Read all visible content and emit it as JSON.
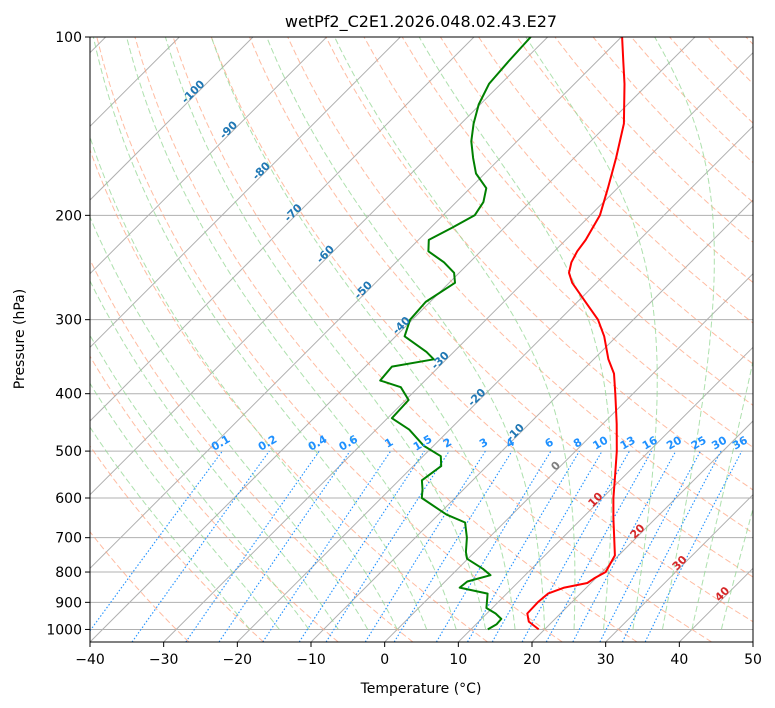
{
  "chart_data": {
    "type": "line",
    "subtype": "skew-t log-p diagram",
    "title": "wetPf2_C2E1.2026.048.02.43.E27",
    "xlabel": "Temperature (°C)",
    "ylabel": "Pressure (hPa)",
    "xlim": [
      -40,
      50
    ],
    "ylim": [
      1050,
      100
    ],
    "x_ticks": [
      -40,
      -30,
      -20,
      -10,
      0,
      10,
      20,
      30,
      40,
      50
    ],
    "x_tick_labels": [
      "−40",
      "−30",
      "−20",
      "−10",
      "0",
      "10",
      "20",
      "30",
      "40",
      "50"
    ],
    "y_ticks": [
      1000,
      900,
      800,
      700,
      600,
      500,
      400,
      300,
      200,
      100
    ],
    "y_tick_labels": [
      "1000",
      "900",
      "800",
      "700",
      "600",
      "500",
      "400",
      "300",
      "200",
      "100"
    ],
    "grid": true,
    "isotherm_labels": [
      {
        "temp": -100,
        "label": "-100",
        "color": "#1f77b4"
      },
      {
        "temp": -90,
        "label": "-90",
        "color": "#1f77b4"
      },
      {
        "temp": -80,
        "label": "-80",
        "color": "#1f77b4"
      },
      {
        "temp": -70,
        "label": "-70",
        "color": "#1f77b4"
      },
      {
        "temp": -60,
        "label": "-60",
        "color": "#1f77b4"
      },
      {
        "temp": -50,
        "label": "-50",
        "color": "#1f77b4"
      },
      {
        "temp": -40,
        "label": "-40",
        "color": "#1f77b4"
      },
      {
        "temp": -30,
        "label": "-30",
        "color": "#1f77b4"
      },
      {
        "temp": -20,
        "label": "-20",
        "color": "#1f77b4"
      },
      {
        "temp": -10,
        "label": "-10",
        "color": "#1f77b4"
      },
      {
        "temp": 0,
        "label": "0",
        "color": "#808080"
      },
      {
        "temp": 10,
        "label": "10",
        "color": "#d62728"
      },
      {
        "temp": 20,
        "label": "20",
        "color": "#d62728"
      },
      {
        "temp": 30,
        "label": "30",
        "color": "#d62728"
      },
      {
        "temp": 40,
        "label": "40",
        "color": "#d62728"
      }
    ],
    "mixing_ratio_labels": [
      "0.1",
      "0.2",
      "0.4",
      "0.6",
      "1",
      "1.5",
      "2",
      "3",
      "4",
      "6",
      "8",
      "10",
      "13",
      "16",
      "20",
      "25",
      "30",
      "36"
    ],
    "mixing_ratio_values": [
      0.1,
      0.2,
      0.4,
      0.6,
      1,
      1.5,
      2,
      3,
      4,
      6,
      8,
      10,
      13,
      16,
      20,
      25,
      30,
      36
    ],
    "series": [
      {
        "name": "Temperature",
        "color": "#ff0000",
        "points": [
          {
            "p": 1000,
            "t": 19.2
          },
          {
            "p": 970,
            "t": 16.8
          },
          {
            "p": 940,
            "t": 15.5
          },
          {
            "p": 900,
            "t": 15.4
          },
          {
            "p": 870,
            "t": 15.6
          },
          {
            "p": 850,
            "t": 17.0
          },
          {
            "p": 835,
            "t": 19.5
          },
          {
            "p": 820,
            "t": 19.8
          },
          {
            "p": 800,
            "t": 20.5
          },
          {
            "p": 750,
            "t": 19.5
          },
          {
            "p": 700,
            "t": 17.0
          },
          {
            "p": 650,
            "t": 14.3
          },
          {
            "p": 600,
            "t": 11.5
          },
          {
            "p": 550,
            "t": 8.7
          },
          {
            "p": 500,
            "t": 5.6
          },
          {
            "p": 450,
            "t": 1.9
          },
          {
            "p": 400,
            "t": -2.4
          },
          {
            "p": 370,
            "t": -5.3
          },
          {
            "p": 350,
            "t": -8.0
          },
          {
            "p": 320,
            "t": -11.7
          },
          {
            "p": 300,
            "t": -14.8
          },
          {
            "p": 280,
            "t": -18.9
          },
          {
            "p": 260,
            "t": -23.3
          },
          {
            "p": 250,
            "t": -25.1
          },
          {
            "p": 240,
            "t": -26.2
          },
          {
            "p": 230,
            "t": -26.9
          },
          {
            "p": 220,
            "t": -27.3
          },
          {
            "p": 200,
            "t": -28.7
          },
          {
            "p": 180,
            "t": -31.3
          },
          {
            "p": 160,
            "t": -34.3
          },
          {
            "p": 140,
            "t": -37.9
          },
          {
            "p": 120,
            "t": -43.2
          },
          {
            "p": 110,
            "t": -46.4
          },
          {
            "p": 100,
            "t": -49.9
          }
        ]
      },
      {
        "name": "Dewpoint",
        "color": "#008000",
        "points": [
          {
            "p": 1000,
            "td": 12.3
          },
          {
            "p": 980,
            "td": 12.8
          },
          {
            "p": 960,
            "td": 12.7
          },
          {
            "p": 940,
            "td": 11.2
          },
          {
            "p": 920,
            "td": 9.2
          },
          {
            "p": 900,
            "td": 8.5
          },
          {
            "p": 870,
            "td": 7.4
          },
          {
            "p": 850,
            "td": 2.8
          },
          {
            "p": 830,
            "td": 3.0
          },
          {
            "p": 810,
            "td": 5.3
          },
          {
            "p": 790,
            "td": 3.4
          },
          {
            "p": 760,
            "td": -0.1
          },
          {
            "p": 740,
            "td": -1.2
          },
          {
            "p": 700,
            "td": -3.0
          },
          {
            "p": 660,
            "td": -5.3
          },
          {
            "p": 640,
            "td": -8.9
          },
          {
            "p": 600,
            "td": -14.5
          },
          {
            "p": 580,
            "td": -15.6
          },
          {
            "p": 560,
            "td": -16.9
          },
          {
            "p": 530,
            "td": -16.2
          },
          {
            "p": 510,
            "td": -17.6
          },
          {
            "p": 490,
            "td": -21.3
          },
          {
            "p": 460,
            "td": -25.5
          },
          {
            "p": 440,
            "td": -29.4
          },
          {
            "p": 410,
            "td": -29.6
          },
          {
            "p": 390,
            "td": -32.4
          },
          {
            "p": 380,
            "td": -36.1
          },
          {
            "p": 360,
            "td": -36.4
          },
          {
            "p": 350,
            "td": -31.7
          },
          {
            "p": 340,
            "td": -33.7
          },
          {
            "p": 320,
            "td": -38.8
          },
          {
            "p": 300,
            "td": -40.3
          },
          {
            "p": 280,
            "td": -40.6
          },
          {
            "p": 260,
            "td": -39.2
          },
          {
            "p": 250,
            "td": -40.7
          },
          {
            "p": 240,
            "td": -43.5
          },
          {
            "p": 230,
            "td": -47.1
          },
          {
            "p": 220,
            "td": -48.6
          },
          {
            "p": 210,
            "td": -47.1
          },
          {
            "p": 200,
            "td": -45.7
          },
          {
            "p": 190,
            "td": -46.3
          },
          {
            "p": 180,
            "td": -47.8
          },
          {
            "p": 170,
            "td": -51.2
          },
          {
            "p": 160,
            "td": -53.7
          },
          {
            "p": 150,
            "td": -56.2
          },
          {
            "p": 140,
            "td": -58.3
          },
          {
            "p": 130,
            "td": -60.2
          },
          {
            "p": 120,
            "td": -61.6
          },
          {
            "p": 110,
            "td": -62.0
          },
          {
            "p": 100,
            "td": -62.3
          }
        ]
      }
    ]
  },
  "colors": {
    "temperature": "#ff0000",
    "dewpoint": "#008000",
    "isotherm": "#aaaaaa",
    "dry_adiabat": "#ffa07a",
    "moist_adiabat": "#98d898",
    "mixing_ratio": "#1e90ff",
    "frame": "#000000"
  }
}
